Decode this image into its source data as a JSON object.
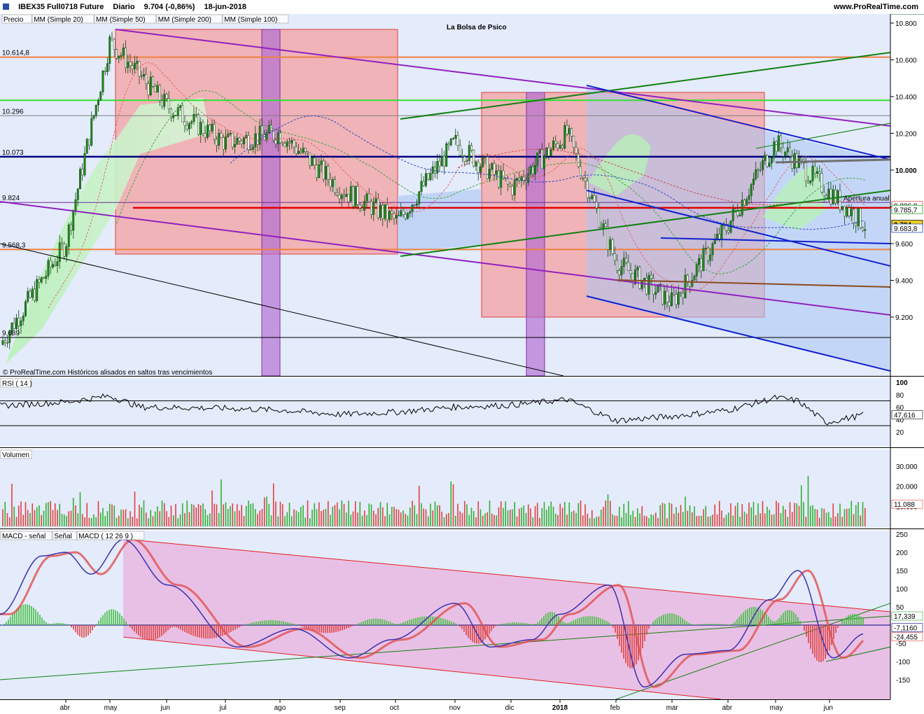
{
  "header": {
    "symbol": "IBEX35 Full0718 Future",
    "period": "Diario",
    "price": "9.704 (-0,86%)",
    "date": "18-jun-2018",
    "site": "www.ProRealTime.com"
  },
  "colors": {
    "bg": "#e4ebfb",
    "up": "#1a8a1a",
    "down": "#e03030",
    "red_zone": "#f4a0a0",
    "blue_zone": "#aac4f4",
    "purple_band": "#b06ad0",
    "macd_zone": "#eab8e0"
  },
  "price_panel": {
    "title": "La Bolsa de Psico",
    "legend": [
      "Precio",
      "MM (Simple 20)",
      "MM (Simple 50)",
      "MM (Simple 200)",
      "MM (Simple 100)"
    ],
    "y_ticks": [
      "10.800",
      "10.600",
      "10.400",
      "10.200",
      "10.000",
      "9.800",
      "9.600",
      "9.400",
      "9.200"
    ],
    "levels": [
      {
        "label": "10.614,8",
        "value": 10614.8,
        "color": "#f08040"
      },
      {
        "label": "10.296",
        "value": 10296,
        "color": "#808080"
      },
      {
        "label": "10.073",
        "value": 10073,
        "color": "#000080"
      },
      {
        "label": "9.824",
        "value": 9824,
        "color": "#6a2a9a"
      },
      {
        "label": "9.568,3",
        "value": 9568.3,
        "color": "#f08040"
      },
      {
        "label": "9.089",
        "value": 9089,
        "color": "#000000"
      }
    ],
    "annotation": "Apertura anual",
    "right_labels": [
      {
        "label": "9.806,8",
        "value": 9806.8,
        "color": "#e05050"
      },
      {
        "label": "9.785,7",
        "value": 9785.7,
        "color": "#30a030"
      },
      {
        "label": "9.704",
        "value": 9704,
        "color": "#000000",
        "bg": "#f0d020"
      },
      {
        "label": "9.683,8",
        "value": 9683.8,
        "color": "#3050c0"
      }
    ],
    "footer": "© ProRealTime.com  Históricos alisados en saltos tras vencimientos"
  },
  "rsi_panel": {
    "label": "RSI ( 14 )",
    "y_ticks": [
      "100",
      "80",
      "60",
      "40",
      "20"
    ],
    "value_label": "47,616"
  },
  "volume_panel": {
    "label": "Volumen",
    "y_ticks": [
      "30.000",
      "20.000",
      "10.000"
    ],
    "value_label": "11.088"
  },
  "macd_panel": {
    "legend": [
      "MACD - señal",
      "Señal",
      "MACD ( 12 26 9 )"
    ],
    "y_ticks": [
      "250",
      "200",
      "150",
      "100",
      "50",
      "-50",
      "-100",
      "-150"
    ],
    "value_labels": [
      "17,339",
      "-7,1160",
      "-24,455"
    ]
  },
  "x_axis": {
    "labels": [
      "abr",
      "may",
      "jun",
      "jul",
      "ago",
      "sep",
      "oct",
      "nov",
      "dic",
      "2018",
      "feb",
      "mar",
      "abr",
      "may",
      "jun"
    ]
  },
  "chart_data": {
    "type": "candlestick",
    "title": "La Bolsa de Psico",
    "ylim": [
      8950,
      10850
    ],
    "close_path_months": [
      "mar",
      "abr",
      "may",
      "jun",
      "jul",
      "ago",
      "sep",
      "oct",
      "nov",
      "dic",
      "ene",
      "feb",
      "mar",
      "abr",
      "may",
      "jun"
    ],
    "close_path_values": [
      9050,
      9600,
      10700,
      10350,
      10150,
      10200,
      9900,
      9720,
      10150,
      9900,
      10200,
      9500,
      9280,
      9700,
      10150,
      9704
    ],
    "rsi_last": 47.616,
    "volume_last": 11088,
    "macd_last": [
      17.339,
      -7.116,
      -24.455
    ]
  }
}
